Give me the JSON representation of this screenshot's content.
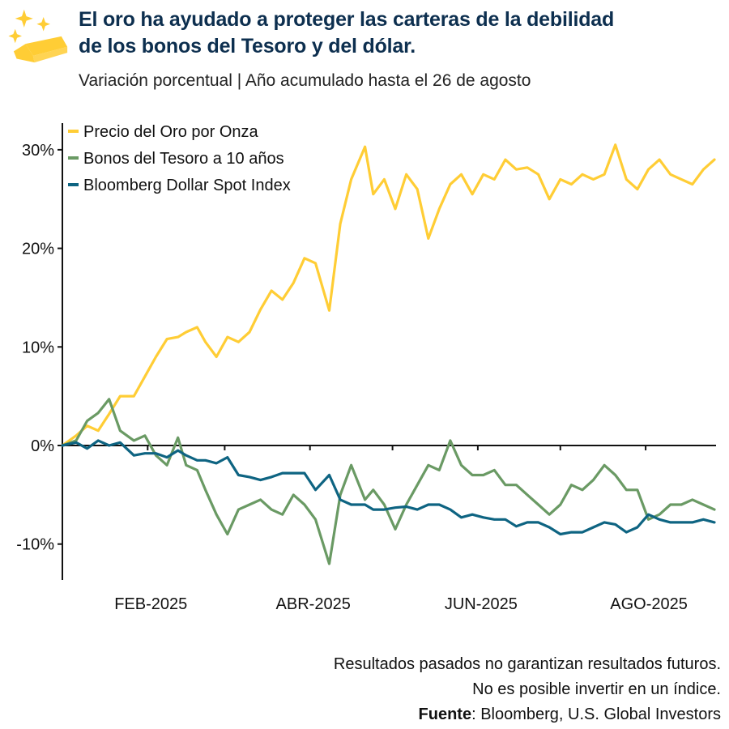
{
  "header": {
    "title_line1": "El oro ha ayudado a proteger las carteras de la debilidad",
    "title_line2": "de los bonos del Tesoro y del dólar.",
    "subtitle": "Variación porcentual | Año acumulado hasta el 26 de agosto",
    "logo_icon": "gold-bar-sparkles-icon"
  },
  "chart_data": {
    "type": "line",
    "title": "",
    "xlabel": "",
    "ylabel": "",
    "xlim": [
      "2025-01-01",
      "2025-08-26"
    ],
    "ylim": [
      -13.5,
      33
    ],
    "y_ticks": [
      -10,
      0,
      10,
      20,
      30
    ],
    "y_tick_labels": [
      "-10%",
      "0%",
      "10%",
      "20%",
      "30%"
    ],
    "x_ticks": [
      "2025-02-01",
      "2025-03-01",
      "2025-04-01",
      "2025-05-01",
      "2025-06-01",
      "2025-07-01",
      "2025-08-01"
    ],
    "x_tick_labels": {
      "2025-02-01": "FEB-2025",
      "2025-04-01": "ABR-2025",
      "2025-06-01": "JUN-2025",
      "2025-08-01": "AGO-2025"
    },
    "grid": false,
    "legend_position": "top-left",
    "x": [
      "2025-01-01",
      "2025-01-06",
      "2025-01-10",
      "2025-01-14",
      "2025-01-18",
      "2025-01-22",
      "2025-01-27",
      "2025-01-31",
      "2025-02-04",
      "2025-02-08",
      "2025-02-12",
      "2025-02-15",
      "2025-02-19",
      "2025-02-22",
      "2025-02-26",
      "2025-03-02",
      "2025-03-06",
      "2025-03-10",
      "2025-03-14",
      "2025-03-18",
      "2025-03-22",
      "2025-03-26",
      "2025-03-30",
      "2025-04-03",
      "2025-04-08",
      "2025-04-12",
      "2025-04-16",
      "2025-04-21",
      "2025-04-24",
      "2025-04-28",
      "2025-05-02",
      "2025-05-06",
      "2025-05-10",
      "2025-05-14",
      "2025-05-18",
      "2025-05-22",
      "2025-05-26",
      "2025-05-30",
      "2025-06-03",
      "2025-06-07",
      "2025-06-11",
      "2025-06-15",
      "2025-06-19",
      "2025-06-23",
      "2025-06-27",
      "2025-07-01",
      "2025-07-05",
      "2025-07-09",
      "2025-07-13",
      "2025-07-17",
      "2025-07-21",
      "2025-07-25",
      "2025-07-29",
      "2025-08-02",
      "2025-08-06",
      "2025-08-10",
      "2025-08-14",
      "2025-08-18",
      "2025-08-22",
      "2025-08-26"
    ],
    "series": [
      {
        "name": "Precio del Oro por Onza",
        "color": "#ffcd35",
        "values": [
          0,
          1.0,
          2.0,
          1.5,
          3.2,
          5.0,
          5.0,
          7.0,
          9.0,
          10.8,
          11.0,
          11.5,
          12.0,
          10.5,
          9.0,
          11.0,
          10.5,
          11.5,
          13.8,
          15.7,
          14.8,
          16.5,
          19.0,
          18.5,
          13.7,
          22.5,
          27.0,
          30.3,
          25.5,
          27.0,
          24.0,
          27.5,
          26.0,
          21.0,
          24.0,
          26.5,
          27.5,
          25.5,
          27.5,
          27.0,
          29.0,
          28.0,
          28.2,
          27.5,
          25.0,
          27.0,
          26.5,
          27.5,
          27.0,
          27.5,
          30.5,
          27.0,
          26.0,
          28.0,
          29.0,
          27.5,
          27.0,
          26.5,
          28.0,
          29.0
        ]
      },
      {
        "name": "Bonos del Tesoro a 10 años",
        "color": "#6a9a64",
        "values": [
          0,
          0.5,
          2.5,
          3.3,
          4.7,
          1.5,
          0.5,
          1.0,
          -1.0,
          -2.0,
          0.8,
          -2.0,
          -2.5,
          -4.5,
          -7.0,
          -9.0,
          -6.5,
          -6.0,
          -5.5,
          -6.5,
          -7.0,
          -5.0,
          -6.0,
          -7.5,
          -12.0,
          -5.0,
          -2.0,
          -5.5,
          -4.5,
          -6.0,
          -8.5,
          -6.0,
          -4.0,
          -2.0,
          -2.5,
          0.5,
          -2.0,
          -3.0,
          -3.0,
          -2.5,
          -4.0,
          -4.0,
          -5.0,
          -6.0,
          -7.0,
          -6.0,
          -4.0,
          -4.5,
          -3.5,
          -2.0,
          -3.0,
          -4.5,
          -4.5,
          -7.5,
          -7.0,
          -6.0,
          -6.0,
          -5.5,
          -6.0,
          -6.5
        ]
      },
      {
        "name": "Bloomberg Dollar Spot Index",
        "color": "#0e6482",
        "values": [
          0,
          0.3,
          -0.3,
          0.5,
          0.0,
          0.3,
          -1.0,
          -0.8,
          -0.8,
          -1.2,
          -0.5,
          -1.0,
          -1.5,
          -1.5,
          -1.8,
          -1.2,
          -3.0,
          -3.2,
          -3.5,
          -3.2,
          -2.8,
          -2.8,
          -2.8,
          -4.5,
          -3.0,
          -5.5,
          -6.0,
          -6.0,
          -6.5,
          -6.5,
          -6.3,
          -6.2,
          -6.5,
          -6.0,
          -6.0,
          -6.5,
          -7.3,
          -7.0,
          -7.3,
          -7.5,
          -7.5,
          -8.2,
          -7.8,
          -7.8,
          -8.3,
          -9.0,
          -8.8,
          -8.8,
          -8.3,
          -7.8,
          -8.0,
          -8.8,
          -8.3,
          -7.0,
          -7.5,
          -7.8,
          -7.8,
          -7.8,
          -7.5,
          -7.8
        ]
      }
    ]
  },
  "footer": {
    "disclaimer1": "Resultados pasados no garantizan resultados futuros.",
    "disclaimer2": "No es posible invertir en un índice.",
    "source_label": "Fuente",
    "source_text": ": Bloomberg, U.S. Global Investors"
  }
}
